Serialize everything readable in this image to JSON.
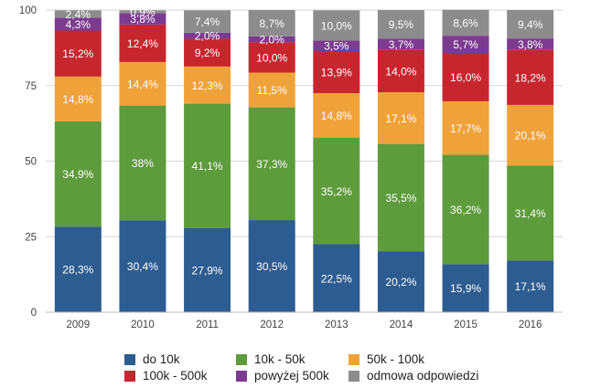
{
  "chart_data": {
    "type": "bar",
    "stacked": true,
    "title": "",
    "xlabel": "",
    "ylabel": "",
    "ylim": [
      0,
      100
    ],
    "yticks": [
      0,
      25,
      50,
      75,
      100
    ],
    "grid": true,
    "legend_position": "bottom",
    "categories": [
      "2009",
      "2010",
      "2011",
      "2012",
      "2013",
      "2014",
      "2015",
      "2016"
    ],
    "series": [
      {
        "name": "do 10k",
        "color": "#2d5c91",
        "values": [
          28.3,
          30.4,
          27.9,
          30.5,
          22.5,
          20.2,
          15.9,
          17.1
        ],
        "labels": [
          "28,3%",
          "30,4%",
          "27,9%",
          "30,5%",
          "22,5%",
          "20,2%",
          "15,9%",
          "17,1%"
        ]
      },
      {
        "name": "10k - 50k",
        "color": "#5e9b3c",
        "values": [
          34.9,
          38,
          41.1,
          37.3,
          35.2,
          35.5,
          36.2,
          31.4
        ],
        "labels": [
          "34,9%",
          "38%",
          "41,1%",
          "37,3%",
          "35,2%",
          "35,5%",
          "36,2%",
          "31,4%"
        ]
      },
      {
        "name": "50k - 100k",
        "color": "#f0a23a",
        "values": [
          14.8,
          14.4,
          12.3,
          11.5,
          14.8,
          17.1,
          17.7,
          20.1
        ],
        "labels": [
          "14,8%",
          "14,4%",
          "12,3%",
          "11,5%",
          "14,8%",
          "17,1%",
          "17,7%",
          "20,1%"
        ]
      },
      {
        "name": "100k - 500k",
        "color": "#c8262f",
        "values": [
          15.2,
          12.4,
          9.2,
          10.0,
          13.9,
          14.0,
          16.0,
          18.2
        ],
        "labels": [
          "15,2%",
          "12,4%",
          "9,2%",
          "10,0%",
          "13,9%",
          "14,0%",
          "16,0%",
          "18,2%"
        ]
      },
      {
        "name": "powyżej 500k",
        "color": "#7b3b8f",
        "values": [
          4.3,
          3.8,
          2.0,
          2.0,
          3.5,
          3.7,
          5.7,
          3.8
        ],
        "labels": [
          "4,3%",
          "3,8%",
          "2,0%",
          "2,0%",
          "3,5%",
          "3,7%",
          "5,7%",
          "3,8%"
        ]
      },
      {
        "name": "odmowa odpowiedzi",
        "color": "#8c8c8c",
        "values": [
          2.4,
          0.9,
          7.4,
          8.7,
          10.0,
          9.5,
          8.6,
          9.4
        ],
        "labels": [
          "2,4%",
          "0,9%",
          "7,4%",
          "8,7%",
          "10,0%",
          "9,5%",
          "8,6%",
          "9,4%"
        ]
      }
    ],
    "legend": [
      "do 10k",
      "10k - 50k",
      "50k - 100k",
      "100k - 500k",
      "powyżej 500k",
      "odmowa odpowiedzi"
    ]
  }
}
